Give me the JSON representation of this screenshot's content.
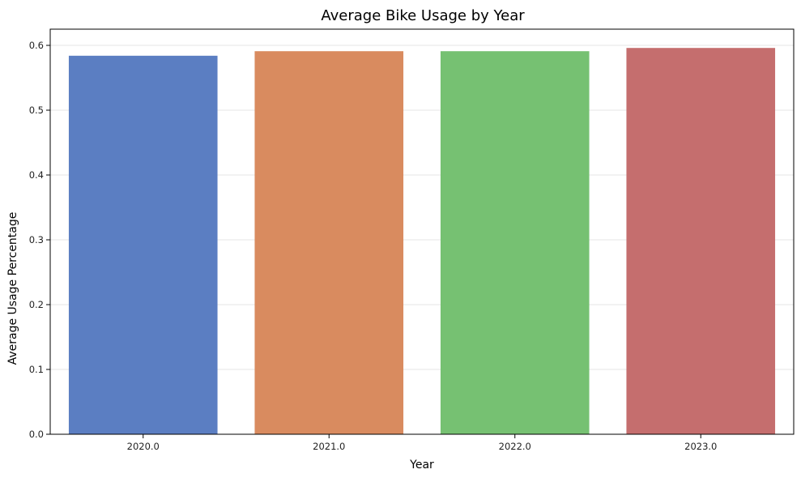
{
  "chart_data": {
    "type": "bar",
    "title": "Average Bike Usage by Year",
    "xlabel": "Year",
    "ylabel": "Average Usage Percentage",
    "categories": [
      "2020.0",
      "2021.0",
      "2022.0",
      "2023.0"
    ],
    "values": [
      0.584,
      0.591,
      0.591,
      0.596
    ],
    "colors": [
      "#5b7ec2",
      "#d98b5f",
      "#76c172",
      "#c56e6e"
    ],
    "ylim": [
      0,
      0.625
    ],
    "yticks": [
      0.0,
      0.1,
      0.2,
      0.3,
      0.4,
      0.5,
      0.6
    ],
    "ytick_labels": [
      "0.0",
      "0.1",
      "0.2",
      "0.3",
      "0.4",
      "0.5",
      "0.6"
    ],
    "grid": "y",
    "legend": "none"
  }
}
